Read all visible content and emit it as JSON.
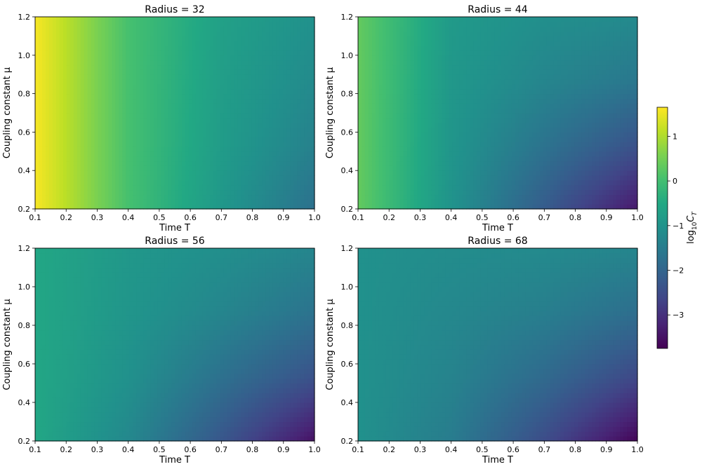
{
  "chart_data": [
    {
      "type": "heatmap",
      "title": "Radius = 32",
      "xlabel": "Time T",
      "ylabel": "Coupling constant μ",
      "xlim": [
        0.1,
        1.0
      ],
      "ylim": [
        0.2,
        1.2
      ],
      "xticks": [
        "0.1",
        "0.2",
        "0.3",
        "0.4",
        "0.5",
        "0.6",
        "0.7",
        "0.8",
        "0.9",
        "1.0"
      ],
      "yticks": [
        "0.2",
        "0.4",
        "0.6",
        "0.8",
        "1.0",
        "1.2"
      ],
      "x": [
        0.1,
        0.4,
        0.7,
        1.0
      ],
      "y": [
        0.2,
        0.53,
        0.87,
        1.2
      ],
      "z": [
        [
          1.6,
          0.05,
          -0.9,
          -1.75
        ],
        [
          1.6,
          0.05,
          -0.8,
          -1.4
        ],
        [
          1.6,
          0.05,
          -0.75,
          -1.2
        ],
        [
          1.6,
          0.05,
          -0.7,
          -1.05
        ]
      ]
    },
    {
      "type": "heatmap",
      "title": "Radius = 44",
      "xlabel": "Time T",
      "ylabel": "Coupling constant μ",
      "xlim": [
        0.1,
        1.0
      ],
      "ylim": [
        0.2,
        1.2
      ],
      "xticks": [
        "0.1",
        "0.2",
        "0.3",
        "0.4",
        "0.5",
        "0.6",
        "0.7",
        "0.8",
        "0.9",
        "1.0"
      ],
      "yticks": [
        "0.2",
        "0.4",
        "0.6",
        "0.8",
        "1.0",
        "1.2"
      ],
      "x": [
        0.1,
        0.4,
        0.7,
        1.0
      ],
      "y": [
        0.2,
        0.53,
        0.87,
        1.2
      ],
      "z": [
        [
          0.35,
          -1.0,
          -2.2,
          -3.4
        ],
        [
          0.35,
          -0.95,
          -1.7,
          -2.4
        ],
        [
          0.35,
          -0.9,
          -1.3,
          -1.6
        ],
        [
          0.35,
          -0.85,
          -1.1,
          -1.2
        ]
      ]
    },
    {
      "type": "heatmap",
      "title": "Radius = 56",
      "xlabel": "Time T",
      "ylabel": "Coupling constant μ",
      "xlim": [
        0.1,
        1.0
      ],
      "ylim": [
        0.2,
        1.2
      ],
      "xticks": [
        "0.1",
        "0.2",
        "0.3",
        "0.4",
        "0.5",
        "0.6",
        "0.7",
        "0.8",
        "0.9",
        "1.0"
      ],
      "yticks": [
        "0.2",
        "0.4",
        "0.6",
        "0.8",
        "1.0",
        "1.2"
      ],
      "x": [
        0.1,
        0.4,
        0.7,
        1.0
      ],
      "y": [
        0.2,
        0.53,
        0.87,
        1.2
      ],
      "z": [
        [
          -0.55,
          -1.25,
          -2.3,
          -3.5
        ],
        [
          -0.55,
          -1.05,
          -1.75,
          -2.4
        ],
        [
          -0.55,
          -0.95,
          -1.3,
          -1.7
        ],
        [
          -0.55,
          -0.9,
          -1.1,
          -1.3
        ]
      ]
    },
    {
      "type": "heatmap",
      "title": "Radius = 68",
      "xlabel": "Time T",
      "ylabel": "Coupling constant μ",
      "xlim": [
        0.1,
        1.0
      ],
      "ylim": [
        0.2,
        1.2
      ],
      "xticks": [
        "0.1",
        "0.2",
        "0.3",
        "0.4",
        "0.5",
        "0.6",
        "0.7",
        "0.8",
        "0.9",
        "1.0"
      ],
      "yticks": [
        "0.2",
        "0.4",
        "0.6",
        "0.8",
        "1.0",
        "1.2"
      ],
      "x": [
        0.1,
        0.4,
        0.7,
        1.0
      ],
      "y": [
        0.2,
        0.53,
        0.87,
        1.2
      ],
      "z": [
        [
          -1.05,
          -1.5,
          -2.5,
          -3.7
        ],
        [
          -1.05,
          -1.35,
          -1.9,
          -2.6
        ],
        [
          -1.05,
          -1.25,
          -1.45,
          -1.8
        ],
        [
          -1.05,
          -1.15,
          -1.2,
          -1.3
        ]
      ]
    }
  ],
  "colorbar": {
    "label": "log10 C_T",
    "label_base": "log",
    "label_sub": "10",
    "label_var": "C",
    "label_var_sub": "T",
    "range": [
      -3.75,
      1.65
    ],
    "ticks": [
      1,
      0,
      -1,
      -2,
      -3
    ],
    "tick_labels": [
      "1",
      "0",
      "−1",
      "−2",
      "−3"
    ],
    "colormap": "viridis"
  }
}
